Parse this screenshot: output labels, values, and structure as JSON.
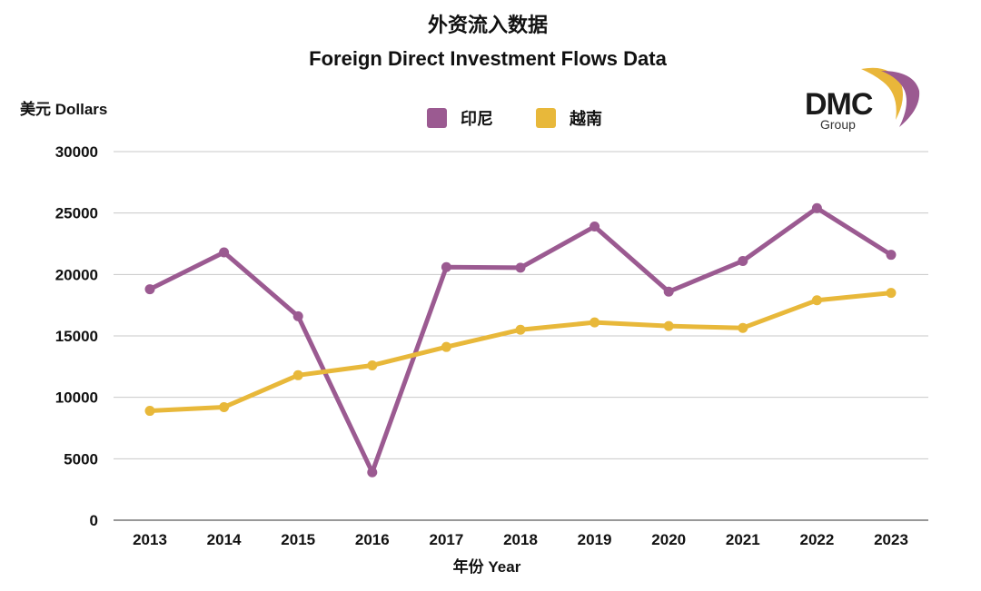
{
  "logo": {
    "text": "DMC",
    "subtext": "Group",
    "colors": [
      "#e9b63a",
      "#9b5a91"
    ]
  },
  "chart_data": {
    "type": "line",
    "title": "外资流入数据",
    "subtitle": "Foreign Direct Investment Flows Data",
    "ylabel": "美元 Dollars",
    "xlabel": "年份 Year",
    "categories": [
      "2013",
      "2014",
      "2015",
      "2016",
      "2017",
      "2018",
      "2019",
      "2020",
      "2021",
      "2022",
      "2023"
    ],
    "ylim": [
      0,
      30000
    ],
    "yticks": [
      "0",
      "5000",
      "10000",
      "15000",
      "20000",
      "25000",
      "30000"
    ],
    "grid": true,
    "legend_position": "top-center",
    "series": [
      {
        "name": "印尼",
        "color": "#9b5a91",
        "values": [
          18800,
          21800,
          16600,
          3900,
          20600,
          20550,
          23900,
          18600,
          21100,
          25400,
          21600
        ]
      },
      {
        "name": "越南",
        "color": "#e8b83a",
        "values": [
          8900,
          9200,
          11800,
          12600,
          14100,
          15500,
          16100,
          15800,
          15650,
          17900,
          18500
        ]
      }
    ]
  }
}
